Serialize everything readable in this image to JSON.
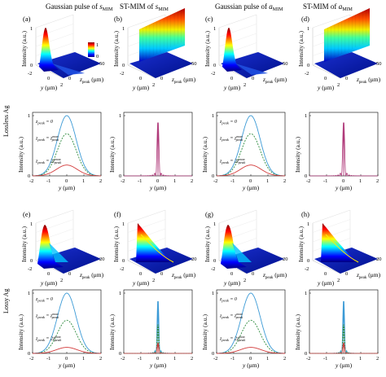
{
  "column_titles": [
    "Gaussian pulse of s_MIM",
    "ST-MIM of s_MIM",
    "Gaussian pulse of a_MIM",
    "ST-MIM of a_MIM"
  ],
  "column_titles_display": [
    {
      "pre": "Gaussian pulse of ",
      "var": "s",
      "sub": "MIM"
    },
    {
      "pre": "ST-MIM of ",
      "var": "s",
      "sub": "MIM"
    },
    {
      "pre": "Gaussian pulse of ",
      "var": "a",
      "sub": "MIM"
    },
    {
      "pre": "ST-MIM of ",
      "var": "a",
      "sub": "MIM"
    }
  ],
  "panel_labels": [
    "(a)",
    "(b)",
    "(c)",
    "(d)",
    "(e)",
    "(f)",
    "(g)",
    "(h)"
  ],
  "row_labels": [
    "Lossless Ag",
    "Lossy Ag"
  ],
  "axis": {
    "y_label": "y (μm)",
    "intensity_label": "Intensity (a.u.)",
    "zpeak_label": "z_peak (μm)"
  },
  "colorbar": {
    "max": "1",
    "min": "0",
    "colors": [
      "#00007f",
      "#0000ff",
      "#00ffff",
      "#ffff00",
      "#ff0000",
      "#7f0000"
    ]
  },
  "surface_ticks": {
    "lossless": {
      "z": [
        "0",
        "50"
      ],
      "y": [
        "-2",
        "0",
        "2"
      ],
      "i": [
        "0",
        "1"
      ]
    },
    "lossy": {
      "z": [
        "0",
        "20"
      ],
      "y": [
        "-2",
        "0",
        "2"
      ],
      "i": [
        "0",
        "1"
      ]
    }
  },
  "profile_ticks": {
    "x": [
      "-2",
      "-1",
      "0",
      "1",
      "2"
    ],
    "y_lossless_gauss": [
      "0",
      "1"
    ],
    "y_lossless_st": [
      "0",
      "1"
    ],
    "y_lossy_gauss": [
      "0",
      "1"
    ],
    "y_lossy_st": [
      "0",
      "1"
    ]
  },
  "legend_annotations": [
    {
      "pre": "z",
      "sub": "peak",
      "post": " = 0"
    },
    {
      "pre": "z",
      "sub": "peak",
      "post": " = z",
      "sup2": "max",
      "sub2": "peak"
    },
    {
      "pre": "z",
      "sub": "peak",
      "post": " = 2z",
      "sup2": "max",
      "sub2": "peak"
    }
  ],
  "series_colors": {
    "z0": "#3b9ad6",
    "zmax": "#2e8b3e",
    "z2max": "#d23a3a",
    "st": "#b03a7a"
  },
  "chart_data": [
    {
      "type": "line",
      "panel": "(a)/(c) lower profile",
      "xlabel": "y (μm)",
      "ylabel": "Intensity (a.u.)",
      "xlim": [
        -2,
        2
      ],
      "ylim": [
        0,
        1
      ],
      "x": [
        -2,
        -1.5,
        -1,
        -0.5,
        0,
        0.5,
        1,
        1.5,
        2
      ],
      "series": [
        {
          "name": "z_peak = 0",
          "values": [
            0.0,
            0.08,
            0.35,
            0.75,
            1.0,
            0.75,
            0.35,
            0.08,
            0.0
          ]
        },
        {
          "name": "z_peak = z_peak^max",
          "values": [
            0.0,
            0.05,
            0.22,
            0.5,
            0.7,
            0.5,
            0.22,
            0.05,
            0.0
          ]
        },
        {
          "name": "z_peak = 2z_peak^max",
          "values": [
            0.0,
            0.02,
            0.06,
            0.14,
            0.18,
            0.14,
            0.06,
            0.02,
            0.0
          ]
        }
      ]
    },
    {
      "type": "line",
      "panel": "(b)/(d) lower profile",
      "xlabel": "y (μm)",
      "ylabel": "Intensity (a.u.)",
      "xlim": [
        -2,
        2
      ],
      "ylim": [
        0,
        1
      ],
      "x": [
        -2,
        -0.5,
        -0.3,
        -0.15,
        0,
        0.15,
        0.3,
        0.5,
        2
      ],
      "series": [
        {
          "values": [
            0.0,
            0.0,
            0.04,
            0.1,
            1.0,
            0.1,
            0.04,
            0.0,
            0.0
          ]
        }
      ]
    },
    {
      "type": "line",
      "panel": "(e)/(g) lower profile",
      "xlabel": "y (μm)",
      "ylabel": "Intensity (a.u.)",
      "xlim": [
        -2,
        2
      ],
      "ylim": [
        0,
        1
      ],
      "x": [
        -2,
        -1.5,
        -1,
        -0.5,
        0,
        0.5,
        1,
        1.5,
        2
      ],
      "series": [
        {
          "name": "z_peak = 0",
          "values": [
            0.0,
            0.08,
            0.35,
            0.75,
            1.0,
            0.75,
            0.35,
            0.08,
            0.0
          ]
        },
        {
          "name": "z_peak = z_peak^max",
          "values": [
            0.0,
            0.04,
            0.18,
            0.42,
            0.55,
            0.42,
            0.18,
            0.04,
            0.0
          ]
        },
        {
          "name": "z_peak = 2z_peak^max",
          "values": [
            0.0,
            0.01,
            0.04,
            0.08,
            0.1,
            0.08,
            0.04,
            0.01,
            0.0
          ]
        }
      ]
    },
    {
      "type": "line",
      "panel": "(f)/(h) lower profile",
      "xlabel": "y (μm)",
      "ylabel": "Intensity (a.u.)",
      "xlim": [
        -2,
        2
      ],
      "ylim": [
        0,
        1
      ],
      "x": [
        -2,
        -0.5,
        -0.3,
        -0.15,
        0,
        0.15,
        0.3,
        0.5,
        2
      ],
      "series": [
        {
          "name": "z_peak = 0",
          "values": [
            0.0,
            0.02,
            0.06,
            0.15,
            1.0,
            0.15,
            0.06,
            0.02,
            0.0
          ]
        },
        {
          "name": "z_peak = z_peak^max",
          "values": [
            0.0,
            0.02,
            0.05,
            0.12,
            0.55,
            0.12,
            0.05,
            0.02,
            0.0
          ]
        },
        {
          "name": "z_peak = 2z_peak^max",
          "values": [
            0.0,
            0.01,
            0.03,
            0.06,
            0.2,
            0.06,
            0.03,
            0.01,
            0.0
          ]
        }
      ]
    }
  ]
}
